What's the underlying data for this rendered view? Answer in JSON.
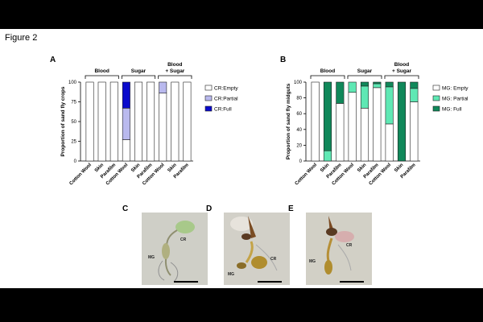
{
  "figure_title": "Figure 2",
  "chart_data": [
    {
      "type": "bar",
      "panel_label": "A",
      "title": "",
      "ylabel": "Proportion of sand fly crops",
      "ylim": [
        0,
        100
      ],
      "yticks": [
        0,
        25,
        50,
        75,
        100
      ],
      "categories": [
        "Cotton Wool",
        "Skin",
        "Parafilm",
        "Cotton Wool",
        "Skin",
        "Parafilm",
        "Cotton Wool",
        "Skin",
        "Parafilm"
      ],
      "groups": [
        {
          "label": "Blood",
          "indices": [
            0,
            1,
            2
          ]
        },
        {
          "label": "Sugar",
          "indices": [
            3,
            4,
            5
          ]
        },
        {
          "label": "Blood\n+ Sugar",
          "indices": [
            6,
            7,
            8
          ]
        }
      ],
      "series": [
        {
          "name": "CR:Empty",
          "color": "#ffffff",
          "values": [
            100,
            100,
            100,
            27,
            100,
            100,
            86,
            100,
            100
          ]
        },
        {
          "name": "CR:Partial",
          "color": "#b9b9ee",
          "values": [
            0,
            0,
            0,
            40,
            0,
            0,
            14,
            0,
            0
          ]
        },
        {
          "name": "CR:Full",
          "color": "#0a0acc",
          "values": [
            0,
            0,
            0,
            33,
            0,
            0,
            0,
            0,
            0
          ]
        }
      ],
      "legend_position": "right"
    },
    {
      "type": "bar",
      "panel_label": "B",
      "title": "",
      "ylabel": "Proportion of sand fly midguts",
      "ylim": [
        0,
        100
      ],
      "yticks": [
        0,
        20,
        40,
        60,
        80,
        100
      ],
      "categories": [
        "Cotton Wool",
        "Skin",
        "Parafilm",
        "Cotton Wool",
        "Skin",
        "Parafilm",
        "Cotton Wool",
        "Skin",
        "Parafilm"
      ],
      "groups": [
        {
          "label": "Blood",
          "indices": [
            0,
            1,
            2
          ]
        },
        {
          "label": "Sugar",
          "indices": [
            3,
            4,
            5
          ]
        },
        {
          "label": "Blood\n+ Sugar",
          "indices": [
            6,
            7,
            8
          ]
        }
      ],
      "series": [
        {
          "name": "MG: Empty",
          "color": "#ffffff",
          "values": [
            100,
            0,
            73,
            87,
            67,
            93,
            47,
            0,
            75
          ]
        },
        {
          "name": "MG: Partial",
          "color": "#5fe8b4",
          "values": [
            0,
            13,
            0,
            13,
            28,
            5,
            47,
            0,
            17
          ]
        },
        {
          "name": "MG: Full",
          "color": "#10885a",
          "values": [
            0,
            87,
            27,
            0,
            5,
            2,
            6,
            100,
            8
          ]
        }
      ],
      "legend_position": "right"
    }
  ],
  "photos": [
    {
      "label": "C",
      "annotations": [
        "CR",
        "MG"
      ]
    },
    {
      "label": "D",
      "annotations": [
        "CR",
        "MG"
      ]
    },
    {
      "label": "E",
      "annotations": [
        "CR",
        "MG"
      ]
    }
  ]
}
